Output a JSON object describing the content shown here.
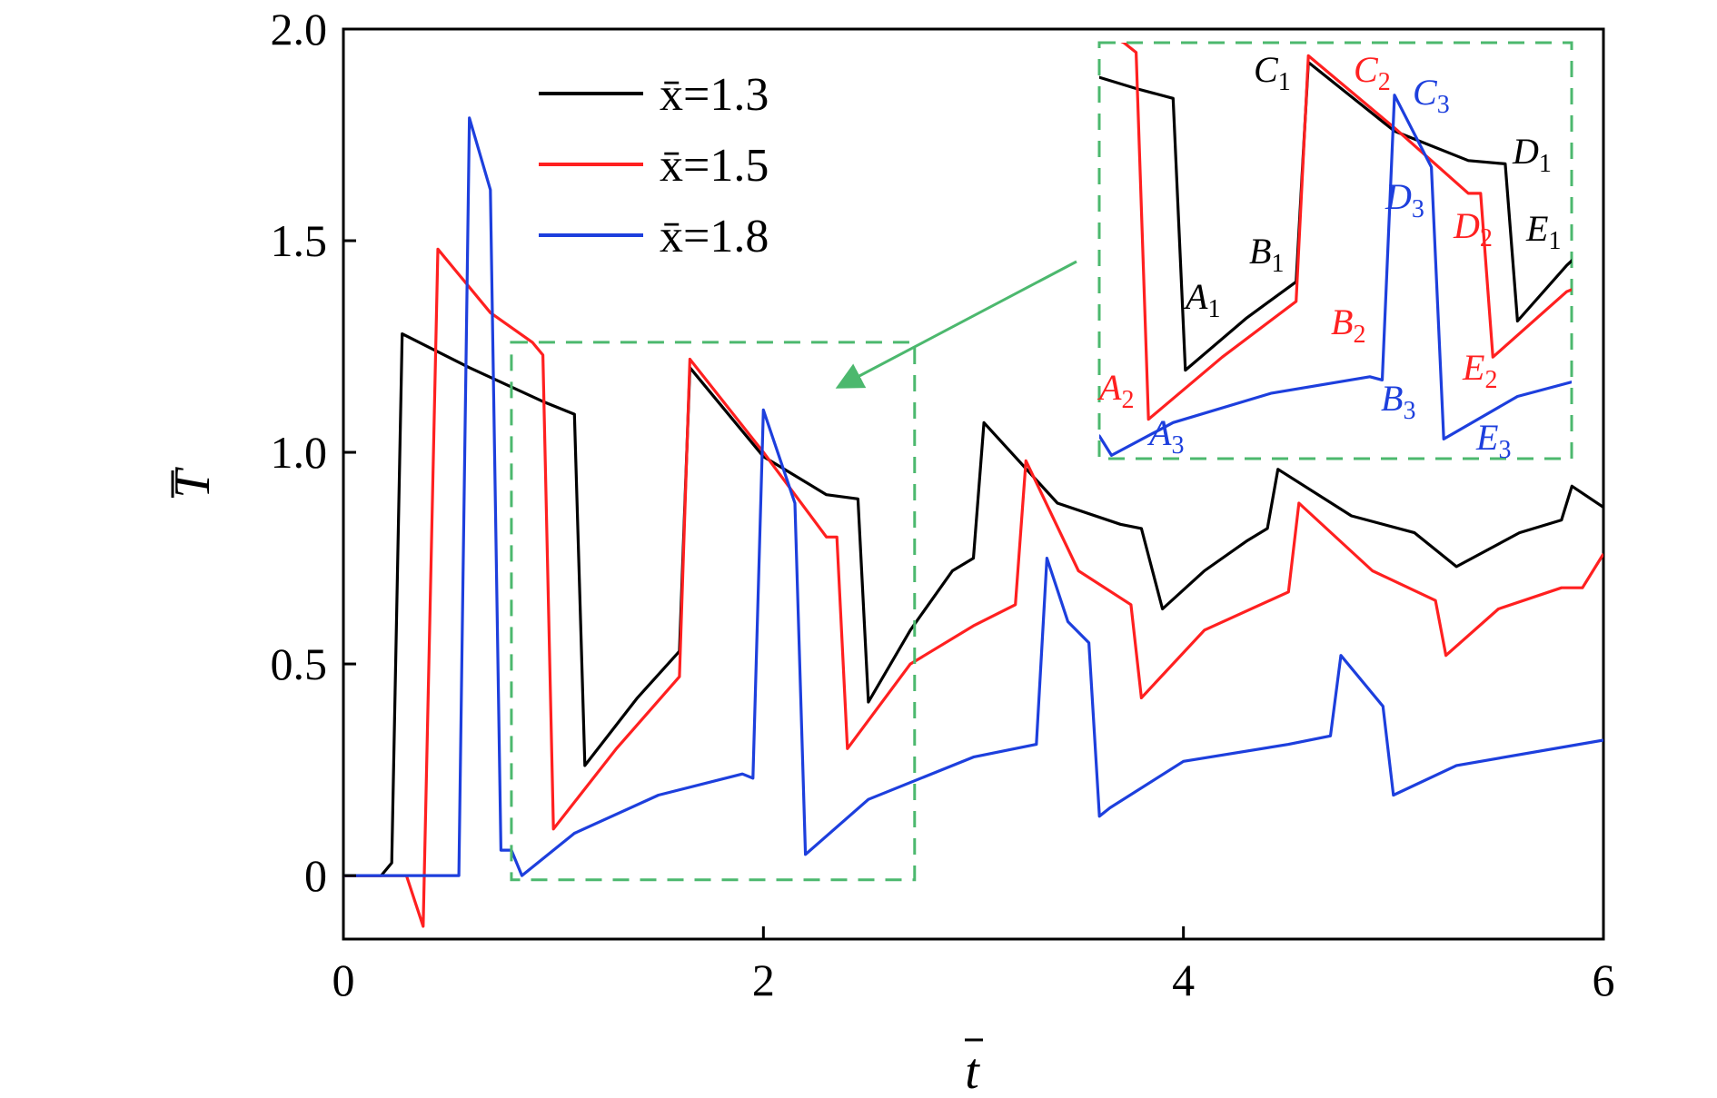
{
  "chart_data": {
    "type": "line",
    "xlabel": "t",
    "ylabel": "T",
    "xlim": [
      0,
      6
    ],
    "ylim": [
      -0.15,
      2.0
    ],
    "x_ticks": [
      "0",
      "2",
      "4",
      "6"
    ],
    "y_ticks": [
      "0",
      "0.5",
      "1.0",
      "1.5",
      "2.0"
    ],
    "grid": false,
    "legend_position": "top-center",
    "series": [
      {
        "name": "x̄=1.3",
        "color": "#000000",
        "x": [
          0,
          0.18,
          0.23,
          0.28,
          0.6,
          0.95,
          1.1,
          1.15,
          1.4,
          1.6,
          1.65,
          2.0,
          2.3,
          2.45,
          2.5,
          2.7,
          2.9,
          3.0,
          3.05,
          3.4,
          3.7,
          3.8,
          3.9,
          4.1,
          4.3,
          4.4,
          4.45,
          4.8,
          5.1,
          5.3,
          5.6,
          5.8,
          5.85,
          6.0
        ],
        "y": [
          0,
          0,
          0.03,
          1.28,
          1.2,
          1.12,
          1.09,
          0.26,
          0.42,
          0.53,
          1.2,
          0.99,
          0.9,
          0.89,
          0.41,
          0.58,
          0.72,
          0.75,
          1.07,
          0.88,
          0.83,
          0.82,
          0.63,
          0.72,
          0.79,
          0.82,
          0.96,
          0.85,
          0.81,
          0.73,
          0.81,
          0.84,
          0.92,
          0.87
        ]
      },
      {
        "name": "x̄=1.5",
        "color": "#ff2020",
        "x": [
          0,
          0.3,
          0.38,
          0.45,
          0.7,
          0.9,
          0.95,
          1.0,
          1.3,
          1.6,
          1.65,
          2.0,
          2.3,
          2.35,
          2.4,
          2.7,
          3.0,
          3.2,
          3.25,
          3.5,
          3.75,
          3.8,
          4.1,
          4.5,
          4.55,
          4.9,
          5.2,
          5.25,
          5.5,
          5.8,
          5.9,
          6.0
        ],
        "y": [
          0,
          0,
          -0.12,
          1.48,
          1.33,
          1.26,
          1.23,
          0.11,
          0.3,
          0.47,
          1.22,
          1.0,
          0.8,
          0.8,
          0.3,
          0.5,
          0.59,
          0.64,
          0.98,
          0.72,
          0.64,
          0.42,
          0.58,
          0.67,
          0.88,
          0.72,
          0.65,
          0.52,
          0.63,
          0.68,
          0.68,
          0.76
        ]
      },
      {
        "name": "x̄=1.8",
        "color": "#1d3fdd",
        "x": [
          0,
          0.5,
          0.55,
          0.6,
          0.7,
          0.75,
          0.8,
          0.85,
          1.1,
          1.5,
          1.9,
          1.95,
          2.0,
          2.15,
          2.2,
          2.5,
          3.0,
          3.3,
          3.35,
          3.45,
          3.55,
          3.6,
          3.65,
          4.0,
          4.5,
          4.7,
          4.75,
          4.95,
          5.0,
          5.3,
          6.0
        ],
        "y": [
          0,
          0,
          0,
          1.79,
          1.62,
          0.06,
          0.06,
          0.0,
          0.1,
          0.19,
          0.24,
          0.23,
          1.1,
          0.88,
          0.05,
          0.18,
          0.28,
          0.31,
          0.75,
          0.6,
          0.55,
          0.14,
          0.16,
          0.27,
          0.31,
          0.33,
          0.52,
          0.4,
          0.19,
          0.26,
          0.32
        ]
      }
    ],
    "inset": {
      "x_range": [
        0.8,
        2.72
      ],
      "y_range": [
        -0.01,
        1.26
      ],
      "labels": [
        {
          "base": "A",
          "sub": "1",
          "color": "#000000"
        },
        {
          "base": "B",
          "sub": "1",
          "color": "#000000"
        },
        {
          "base": "C",
          "sub": "1",
          "color": "#000000"
        },
        {
          "base": "D",
          "sub": "1",
          "color": "#000000"
        },
        {
          "base": "E",
          "sub": "1",
          "color": "#000000"
        },
        {
          "base": "A",
          "sub": "2",
          "color": "#ff2020"
        },
        {
          "base": "B",
          "sub": "2",
          "color": "#ff2020"
        },
        {
          "base": "C",
          "sub": "2",
          "color": "#ff2020"
        },
        {
          "base": "D",
          "sub": "2",
          "color": "#ff2020"
        },
        {
          "base": "E",
          "sub": "2",
          "color": "#ff2020"
        },
        {
          "base": "A",
          "sub": "3",
          "color": "#1d3fdd"
        },
        {
          "base": "B",
          "sub": "3",
          "color": "#1d3fdd"
        },
        {
          "base": "C",
          "sub": "3",
          "color": "#1d3fdd"
        },
        {
          "base": "D",
          "sub": "3",
          "color": "#1d3fdd"
        },
        {
          "base": "E",
          "sub": "3",
          "color": "#1d3fdd"
        }
      ]
    },
    "highlight_color": "#4cb86e"
  }
}
